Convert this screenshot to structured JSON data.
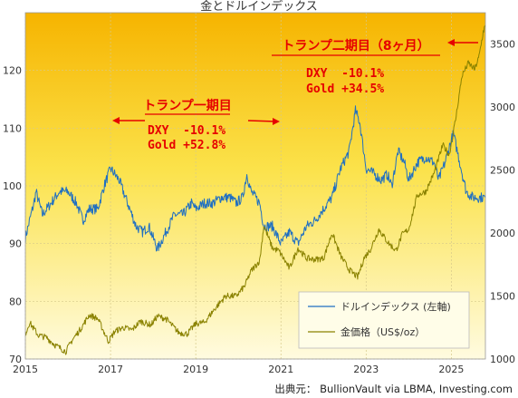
{
  "chart_data": {
    "type": "line",
    "title": "金とドルインデックス",
    "source": "出典元： BullionVault via LBMA, Investing.com",
    "x_ticks": [
      "2015",
      "2017",
      "2019",
      "2021",
      "2023",
      "2025"
    ],
    "x_range": [
      2015.0,
      2025.8
    ],
    "y_left": {
      "ticks": [
        70,
        80,
        90,
        100,
        110,
        120
      ],
      "range": [
        70,
        130
      ]
    },
    "y_right": {
      "ticks": [
        1000,
        1500,
        2000,
        2500,
        3000,
        3500
      ],
      "range": [
        1000,
        3750
      ]
    },
    "grid": true,
    "legend_position": "bottom-right",
    "series": [
      {
        "name": "ドルインデックス (左軸)",
        "axis": "left",
        "color": "#1f6fc2",
        "points": [
          [
            2015.0,
            91
          ],
          [
            2015.2,
            97
          ],
          [
            2015.25,
            99
          ],
          [
            2015.4,
            95
          ],
          [
            2015.6,
            97
          ],
          [
            2015.8,
            99
          ],
          [
            2016.0,
            99
          ],
          [
            2016.2,
            97
          ],
          [
            2016.35,
            94
          ],
          [
            2016.5,
            96
          ],
          [
            2016.7,
            96
          ],
          [
            2016.85,
            100
          ],
          [
            2017.0,
            103
          ],
          [
            2017.2,
            101
          ],
          [
            2017.4,
            97
          ],
          [
            2017.6,
            93
          ],
          [
            2017.75,
            92
          ],
          [
            2017.9,
            93
          ],
          [
            2018.0,
            91
          ],
          [
            2018.1,
            89
          ],
          [
            2018.3,
            92
          ],
          [
            2018.5,
            95
          ],
          [
            2018.7,
            95
          ],
          [
            2018.9,
            97
          ],
          [
            2019.0,
            96
          ],
          [
            2019.2,
            97
          ],
          [
            2019.4,
            97
          ],
          [
            2019.6,
            98
          ],
          [
            2019.8,
            98
          ],
          [
            2019.95,
            97
          ],
          [
            2020.1,
            98
          ],
          [
            2020.2,
            102
          ],
          [
            2020.3,
            99
          ],
          [
            2020.5,
            97
          ],
          [
            2020.6,
            93
          ],
          [
            2020.8,
            93
          ],
          [
            2021.0,
            90
          ],
          [
            2021.2,
            92
          ],
          [
            2021.4,
            90
          ],
          [
            2021.6,
            93
          ],
          [
            2021.8,
            94
          ],
          [
            2022.0,
            96
          ],
          [
            2022.2,
            98
          ],
          [
            2022.4,
            103
          ],
          [
            2022.6,
            106
          ],
          [
            2022.75,
            113
          ],
          [
            2022.85,
            111
          ],
          [
            2023.0,
            103
          ],
          [
            2023.2,
            102
          ],
          [
            2023.35,
            101
          ],
          [
            2023.5,
            102
          ],
          [
            2023.6,
            100
          ],
          [
            2023.75,
            106
          ],
          [
            2023.9,
            104
          ],
          [
            2024.0,
            101
          ],
          [
            2024.2,
            104
          ],
          [
            2024.4,
            105
          ],
          [
            2024.6,
            104
          ],
          [
            2024.7,
            101
          ],
          [
            2024.85,
            104
          ],
          [
            2025.0,
            108
          ],
          [
            2025.05,
            109
          ],
          [
            2025.2,
            104
          ],
          [
            2025.35,
            99
          ],
          [
            2025.5,
            98
          ],
          [
            2025.65,
            98
          ],
          [
            2025.8,
            98
          ]
        ]
      },
      {
        "name": "金価格（US$/oz）",
        "axis": "right",
        "color": "#8a8200",
        "points": [
          [
            2015.0,
            1200
          ],
          [
            2015.1,
            1290
          ],
          [
            2015.3,
            1190
          ],
          [
            2015.5,
            1170
          ],
          [
            2015.7,
            1110
          ],
          [
            2015.95,
            1060
          ],
          [
            2016.1,
            1150
          ],
          [
            2016.3,
            1240
          ],
          [
            2016.5,
            1350
          ],
          [
            2016.7,
            1320
          ],
          [
            2016.95,
            1140
          ],
          [
            2017.1,
            1220
          ],
          [
            2017.3,
            1250
          ],
          [
            2017.5,
            1230
          ],
          [
            2017.7,
            1300
          ],
          [
            2017.95,
            1270
          ],
          [
            2018.1,
            1340
          ],
          [
            2018.3,
            1320
          ],
          [
            2018.6,
            1210
          ],
          [
            2018.8,
            1200
          ],
          [
            2019.0,
            1280
          ],
          [
            2019.2,
            1290
          ],
          [
            2019.45,
            1400
          ],
          [
            2019.7,
            1500
          ],
          [
            2019.95,
            1500
          ],
          [
            2020.15,
            1580
          ],
          [
            2020.3,
            1700
          ],
          [
            2020.5,
            1780
          ],
          [
            2020.6,
            2060
          ],
          [
            2020.8,
            1880
          ],
          [
            2020.95,
            1860
          ],
          [
            2021.2,
            1720
          ],
          [
            2021.4,
            1880
          ],
          [
            2021.6,
            1800
          ],
          [
            2021.8,
            1790
          ],
          [
            2022.0,
            1800
          ],
          [
            2022.2,
            2000
          ],
          [
            2022.4,
            1820
          ],
          [
            2022.6,
            1710
          ],
          [
            2022.8,
            1650
          ],
          [
            2022.95,
            1800
          ],
          [
            2023.1,
            1870
          ],
          [
            2023.3,
            2030
          ],
          [
            2023.5,
            1930
          ],
          [
            2023.7,
            1860
          ],
          [
            2023.85,
            1990
          ],
          [
            2024.0,
            2030
          ],
          [
            2024.2,
            2300
          ],
          [
            2024.4,
            2330
          ],
          [
            2024.6,
            2480
          ],
          [
            2024.8,
            2700
          ],
          [
            2024.95,
            2620
          ],
          [
            2025.1,
            2900
          ],
          [
            2025.25,
            3250
          ],
          [
            2025.4,
            3350
          ],
          [
            2025.55,
            3300
          ],
          [
            2025.65,
            3400
          ],
          [
            2025.75,
            3600
          ],
          [
            2025.8,
            3650
          ]
        ]
      }
    ],
    "annotations": {
      "term1_title": "トランプ一期目",
      "term1_dxy": "DXY  -10.1%",
      "term1_gold": "Gold +52.8%",
      "term2_title": "トランプ二期目（8ヶ月）",
      "term2_dxy": "DXY  -10.1%",
      "term2_gold": "Gold +34.5%"
    }
  }
}
